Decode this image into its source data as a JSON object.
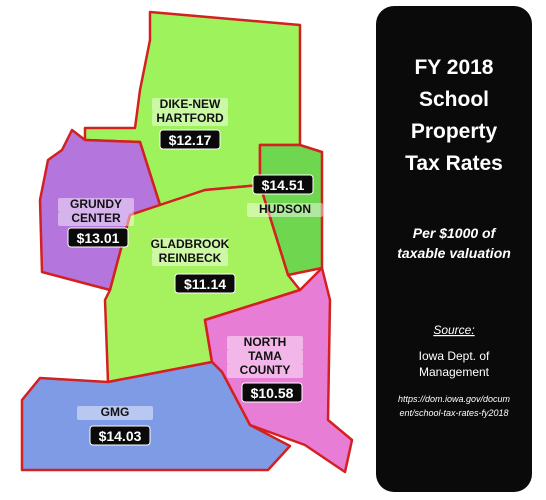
{
  "map": {
    "districts": [
      {
        "name_lines": [
          "DIKE-NEW",
          "HARTFORD"
        ],
        "rate": "$12.17"
      },
      {
        "name_lines": [
          "GRUNDY",
          "CENTER"
        ],
        "rate": "$13.01"
      },
      {
        "name_lines": [
          "HUDSON"
        ],
        "rate": "$14.51"
      },
      {
        "name_lines": [
          "GLADBROOK",
          "REINBECK"
        ],
        "rate": "$11.14"
      },
      {
        "name_lines": [
          "NORTH",
          "TAMA",
          "COUNTY"
        ],
        "rate": "$10.58"
      },
      {
        "name_lines": [
          "GMG"
        ],
        "rate": "$14.03"
      }
    ]
  },
  "panel": {
    "title_lines": [
      "FY 2018",
      "School",
      "Property",
      "Tax Rates"
    ],
    "subtitle_lines": [
      "Per $1000 of",
      "taxable valuation"
    ],
    "source_heading": "Source:",
    "source_lines": [
      "Iowa Dept. of",
      "Management"
    ],
    "url_lines": [
      "https://dom.iowa.gov/docum",
      "ent/school-tax-rates-fy2018"
    ]
  }
}
